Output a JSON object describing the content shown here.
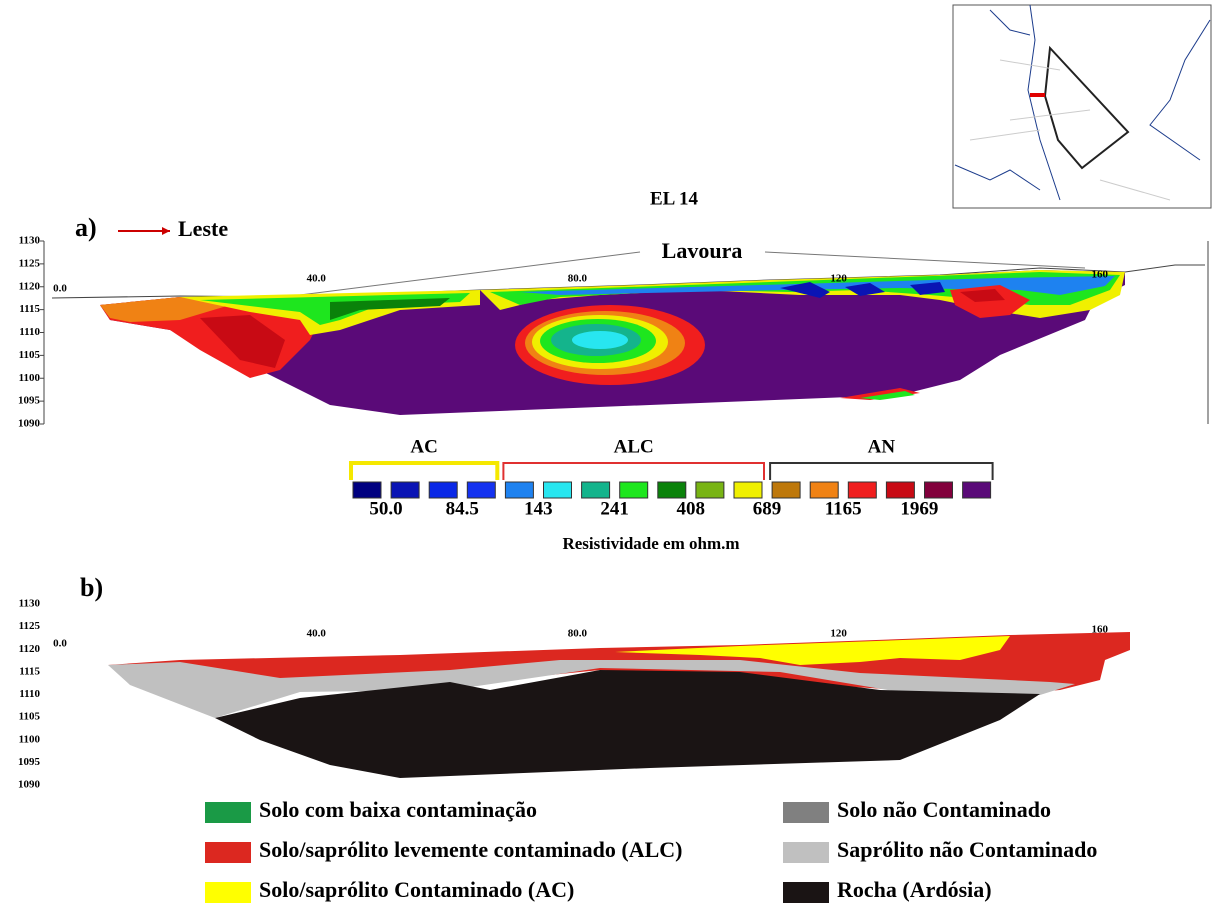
{
  "title": "EL 14",
  "panel_a": {
    "label": "a)",
    "direction": "Leste",
    "site": "Lavoura",
    "elevation_ticks": [
      1130,
      1125,
      1120,
      1115,
      1110,
      1105,
      1100,
      1095,
      1090
    ],
    "distance_ticks": [
      {
        "value": 0,
        "label": "0.0"
      },
      {
        "value": 40,
        "label": "40.0"
      },
      {
        "value": 80,
        "label": "80.0"
      },
      120,
      160
    ]
  },
  "color_scale": {
    "groups": [
      {
        "label": "AC",
        "color": "#f5e800"
      },
      {
        "label": "ALC",
        "color": "#e03030"
      },
      {
        "label": "AN",
        "color": "#333333"
      }
    ],
    "colors": [
      "#000080",
      "#0a14b4",
      "#0a28e6",
      "#1432f0",
      "#1e82f0",
      "#28e6f0",
      "#14b48c",
      "#1ee61e",
      "#0a820a",
      "#78b414",
      "#f0f000",
      "#be780a",
      "#f08214",
      "#f01e1e",
      "#c80a14",
      "#82003c",
      "#5a0a78"
    ],
    "tick_labels": [
      "50.0",
      "84.5",
      "143",
      "241",
      "408",
      "689",
      "1165",
      "1969"
    ],
    "caption": "Resistividade em ohm.m"
  },
  "panel_b": {
    "label": "b)",
    "elevation_ticks": [
      1130,
      1125,
      1120,
      1115,
      1110,
      1105,
      1100,
      1095,
      1090
    ],
    "distance_ticks": [
      {
        "value": 0,
        "label": "0.0"
      },
      {
        "value": 40,
        "label": "40.0"
      },
      {
        "value": 80,
        "label": "80.0"
      },
      120,
      160
    ]
  },
  "legend": [
    {
      "label": "Solo com baixa contaminação",
      "color": "#1a9a46"
    },
    {
      "label": "Solo/saprólito levemente contaminado (ALC)",
      "color": "#dc2820"
    },
    {
      "label": "Solo/saprólito Contaminado (AC)",
      "color": "#ffff00"
    },
    {
      "label": "Solo não Contaminado",
      "color": "#808080"
    },
    {
      "label": "Saprólito não Contaminado",
      "color": "#c0c0c0"
    },
    {
      "label": "Rocha (Ardósia)",
      "color": "#1a1414"
    }
  ]
}
